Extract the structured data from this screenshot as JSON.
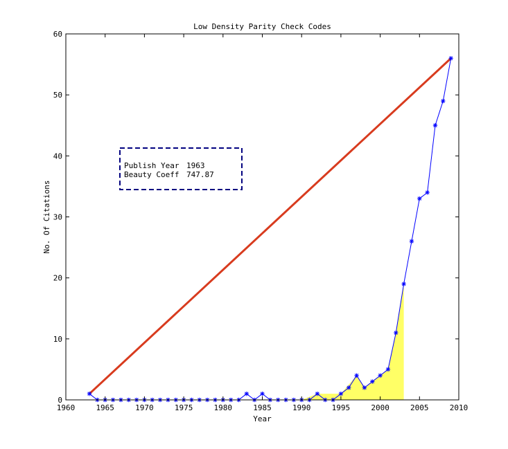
{
  "chart_data": {
    "type": "line",
    "title": "Low Density Parity Check Codes",
    "xlabel": "Year",
    "ylabel": "No. Of Citations",
    "xlim": [
      1960,
      2010
    ],
    "ylim": [
      0,
      60
    ],
    "xticks": [
      1960,
      1965,
      1970,
      1975,
      1980,
      1985,
      1990,
      1995,
      2000,
      2005,
      2010
    ],
    "yticks": [
      0,
      10,
      20,
      30,
      40,
      50,
      60
    ],
    "grid": false,
    "colors": {
      "citations": "#0000ff",
      "reference_line": "#d83b1e",
      "fill": "#ffff66"
    },
    "series": [
      {
        "values": [
          [
            1963,
            1
          ],
          [
            1964,
            0
          ],
          [
            1965,
            0
          ],
          [
            1966,
            0
          ],
          [
            1967,
            0
          ],
          [
            1968,
            0
          ],
          [
            1969,
            0
          ],
          [
            1970,
            0
          ],
          [
            1971,
            0
          ],
          [
            1972,
            0
          ],
          [
            1973,
            0
          ],
          [
            1974,
            0
          ],
          [
            1975,
            0
          ],
          [
            1976,
            0
          ],
          [
            1977,
            0
          ],
          [
            1978,
            0
          ],
          [
            1979,
            0
          ],
          [
            1980,
            0
          ],
          [
            1981,
            0
          ],
          [
            1982,
            0
          ],
          [
            1983,
            1
          ],
          [
            1984,
            0
          ],
          [
            1985,
            1
          ],
          [
            1986,
            0
          ],
          [
            1987,
            0
          ],
          [
            1988,
            0
          ],
          [
            1989,
            0
          ],
          [
            1990,
            0
          ],
          [
            1991,
            0
          ],
          [
            1992,
            1
          ],
          [
            1993,
            0
          ],
          [
            1994,
            0
          ],
          [
            1995,
            1
          ],
          [
            1996,
            2
          ],
          [
            1997,
            4
          ],
          [
            1998,
            2
          ],
          [
            1999,
            3
          ],
          [
            2000,
            4
          ],
          [
            2001,
            5
          ],
          [
            2002,
            11
          ],
          [
            2003,
            19
          ],
          [
            2004,
            26
          ],
          [
            2005,
            33
          ],
          [
            2006,
            34
          ],
          [
            2007,
            45
          ],
          [
            2008,
            49
          ],
          [
            2009,
            56
          ]
        ]
      },
      {
        "values": [
          [
            1963,
            1
          ],
          [
            2009,
            56
          ]
        ]
      }
    ],
    "shaded_area": [
      [
        1990,
        0
      ],
      [
        1992,
        1
      ],
      [
        1995,
        1
      ],
      [
        1997,
        4
      ],
      [
        1998,
        2
      ],
      [
        1999,
        3
      ],
      [
        2000,
        4
      ],
      [
        2001,
        5
      ],
      [
        2002,
        11
      ],
      [
        2003,
        19
      ]
    ],
    "annotation": {
      "rows": [
        {
          "label": "Publish Year",
          "value": "1963"
        },
        {
          "label": "Beauty Coeff",
          "value": "747.87"
        }
      ],
      "placement": "upper-left"
    }
  }
}
